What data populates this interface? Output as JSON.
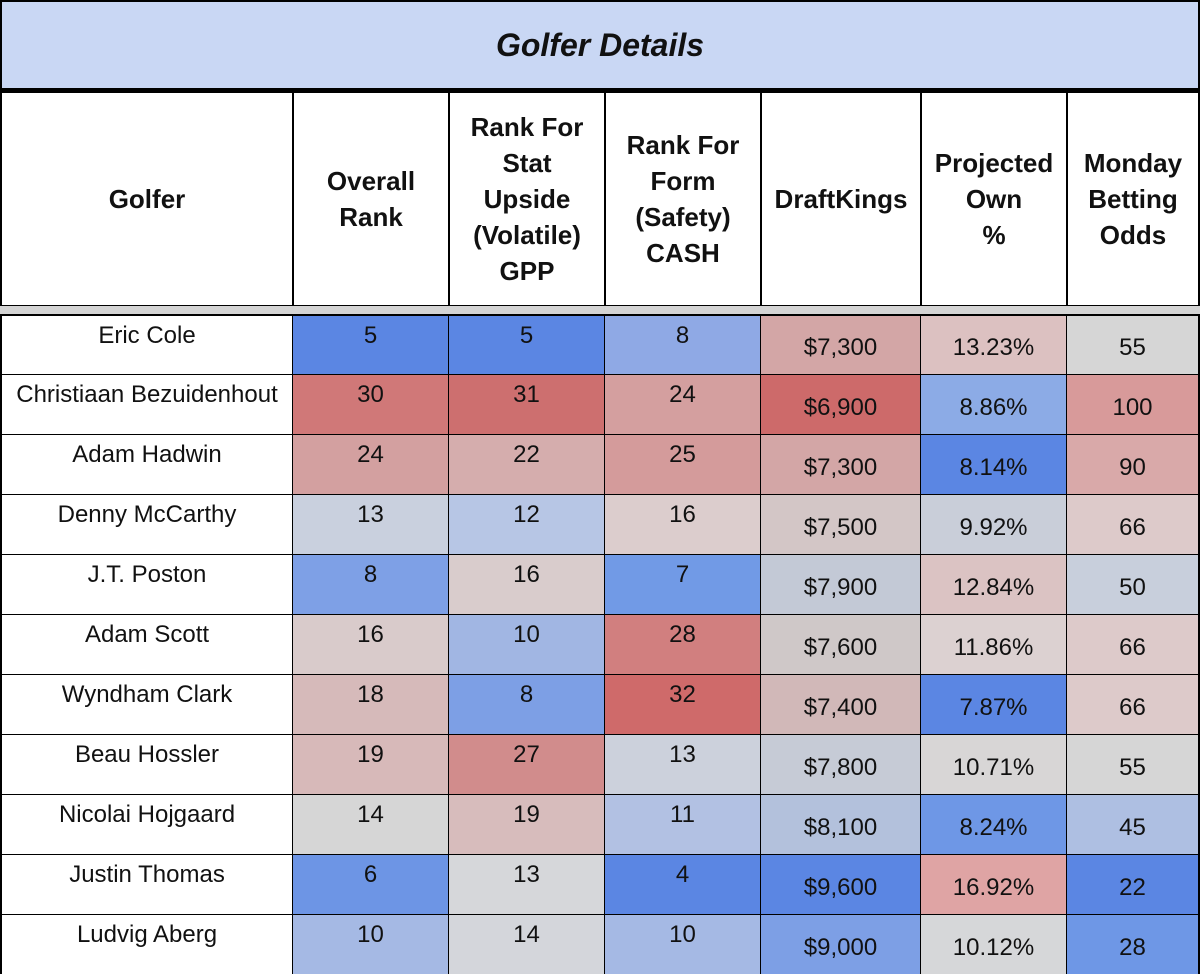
{
  "title": "Golfer Details",
  "headers": [
    "Golfer",
    "Overall\nRank",
    "Rank For\nStat\nUpside\n(Volatile)\nGPP",
    "Rank For\nForm\n(Safety)\nCASH",
    "DraftKings",
    "Projected\nOwn\n%",
    "Monday\nBetting\nOdds"
  ],
  "rows": [
    {
      "golfer": "Eric Cole",
      "overall": "5",
      "upside": "5",
      "form": "8",
      "dk": "$7,300",
      "own": "13.23%",
      "odds": "55",
      "colors": [
        "#5b86e3",
        "#5b86e3",
        "#8fa9e5",
        "#d3a6a6",
        "#dcc1c1",
        "#d6d6d6"
      ]
    },
    {
      "golfer": "Christiaan Bezuidenhout",
      "overall": "30",
      "upside": "31",
      "form": "24",
      "dk": "$6,900",
      "own": "8.86%",
      "odds": "100",
      "colors": [
        "#d07878",
        "#cd6f6f",
        "#d49f9f",
        "#cd6a6a",
        "#8cabe6",
        "#d89a9a"
      ]
    },
    {
      "golfer": "Adam Hadwin",
      "overall": "24",
      "upside": "22",
      "form": "25",
      "dk": "$7,300",
      "own": "8.14%",
      "odds": "90",
      "colors": [
        "#d3a0a0",
        "#d5adad",
        "#d49b9b",
        "#d3a6a6",
        "#5b86e3",
        "#d9a9a9"
      ]
    },
    {
      "golfer": "Denny McCarthy",
      "overall": "13",
      "upside": "12",
      "form": "16",
      "dk": "$7,500",
      "own": "9.92%",
      "odds": "66",
      "colors": [
        "#c9d0de",
        "#b7c6e5",
        "#dccdcd",
        "#d3c6c6",
        "#c9ced9",
        "#ddcaca"
      ]
    },
    {
      "golfer": "J.T. Poston",
      "overall": "8",
      "upside": "16",
      "form": "7",
      "dk": "$7,900",
      "own": "12.84%",
      "odds": "50",
      "colors": [
        "#7ea0e6",
        "#d9cccc",
        "#719ae6",
        "#c3c9d6",
        "#dbc3c3",
        "#c8cfdc"
      ]
    },
    {
      "golfer": "Adam Scott",
      "overall": "16",
      "upside": "10",
      "form": "28",
      "dk": "$7,600",
      "own": "11.86%",
      "odds": "66",
      "colors": [
        "#d9cbcb",
        "#a1b6e3",
        "#d17f7f",
        "#cfc8c8",
        "#dcd1d1",
        "#ddcaca"
      ]
    },
    {
      "golfer": "Wyndham Clark",
      "overall": "18",
      "upside": "8",
      "form": "32",
      "dk": "$7,400",
      "own": "7.87%",
      "odds": "66",
      "colors": [
        "#d6baba",
        "#7d9fe5",
        "#cf6a6a",
        "#d1b8b8",
        "#5b86e3",
        "#ddcaca"
      ]
    },
    {
      "golfer": "Beau Hossler",
      "overall": "19",
      "upside": "27",
      "form": "13",
      "dk": "$7,800",
      "own": "10.71%",
      "odds": "55",
      "colors": [
        "#d7b9b9",
        "#d18c8c",
        "#ccd1dc",
        "#c6cbd6",
        "#d8d6d6",
        "#d6d6d6"
      ]
    },
    {
      "golfer": "Nicolai Hojgaard",
      "overall": "14",
      "upside": "19",
      "form": "11",
      "dk": "$8,100",
      "own": "8.24%",
      "odds": "45",
      "colors": [
        "#d6d6d6",
        "#d7bcbc",
        "#b2c1e3",
        "#b3c1dc",
        "#6e97e6",
        "#aebfe2"
      ]
    },
    {
      "golfer": "Justin Thomas",
      "overall": "6",
      "upside": "13",
      "form": "4",
      "dk": "$9,600",
      "own": "16.92%",
      "odds": "22",
      "colors": [
        "#6d95e5",
        "#d6d7da",
        "#5b86e3",
        "#5b86e3",
        "#dfa4a4",
        "#5b86e3"
      ]
    },
    {
      "golfer": "Ludvig Aberg",
      "overall": "10",
      "upside": "14",
      "form": "10",
      "dk": "$9,000",
      "own": "10.12%",
      "odds": "28",
      "colors": [
        "#a5b9e4",
        "#d4d6db",
        "#a5b9e4",
        "#7d9fe5",
        "#d6d7d9",
        "#6e97e6"
      ]
    }
  ]
}
